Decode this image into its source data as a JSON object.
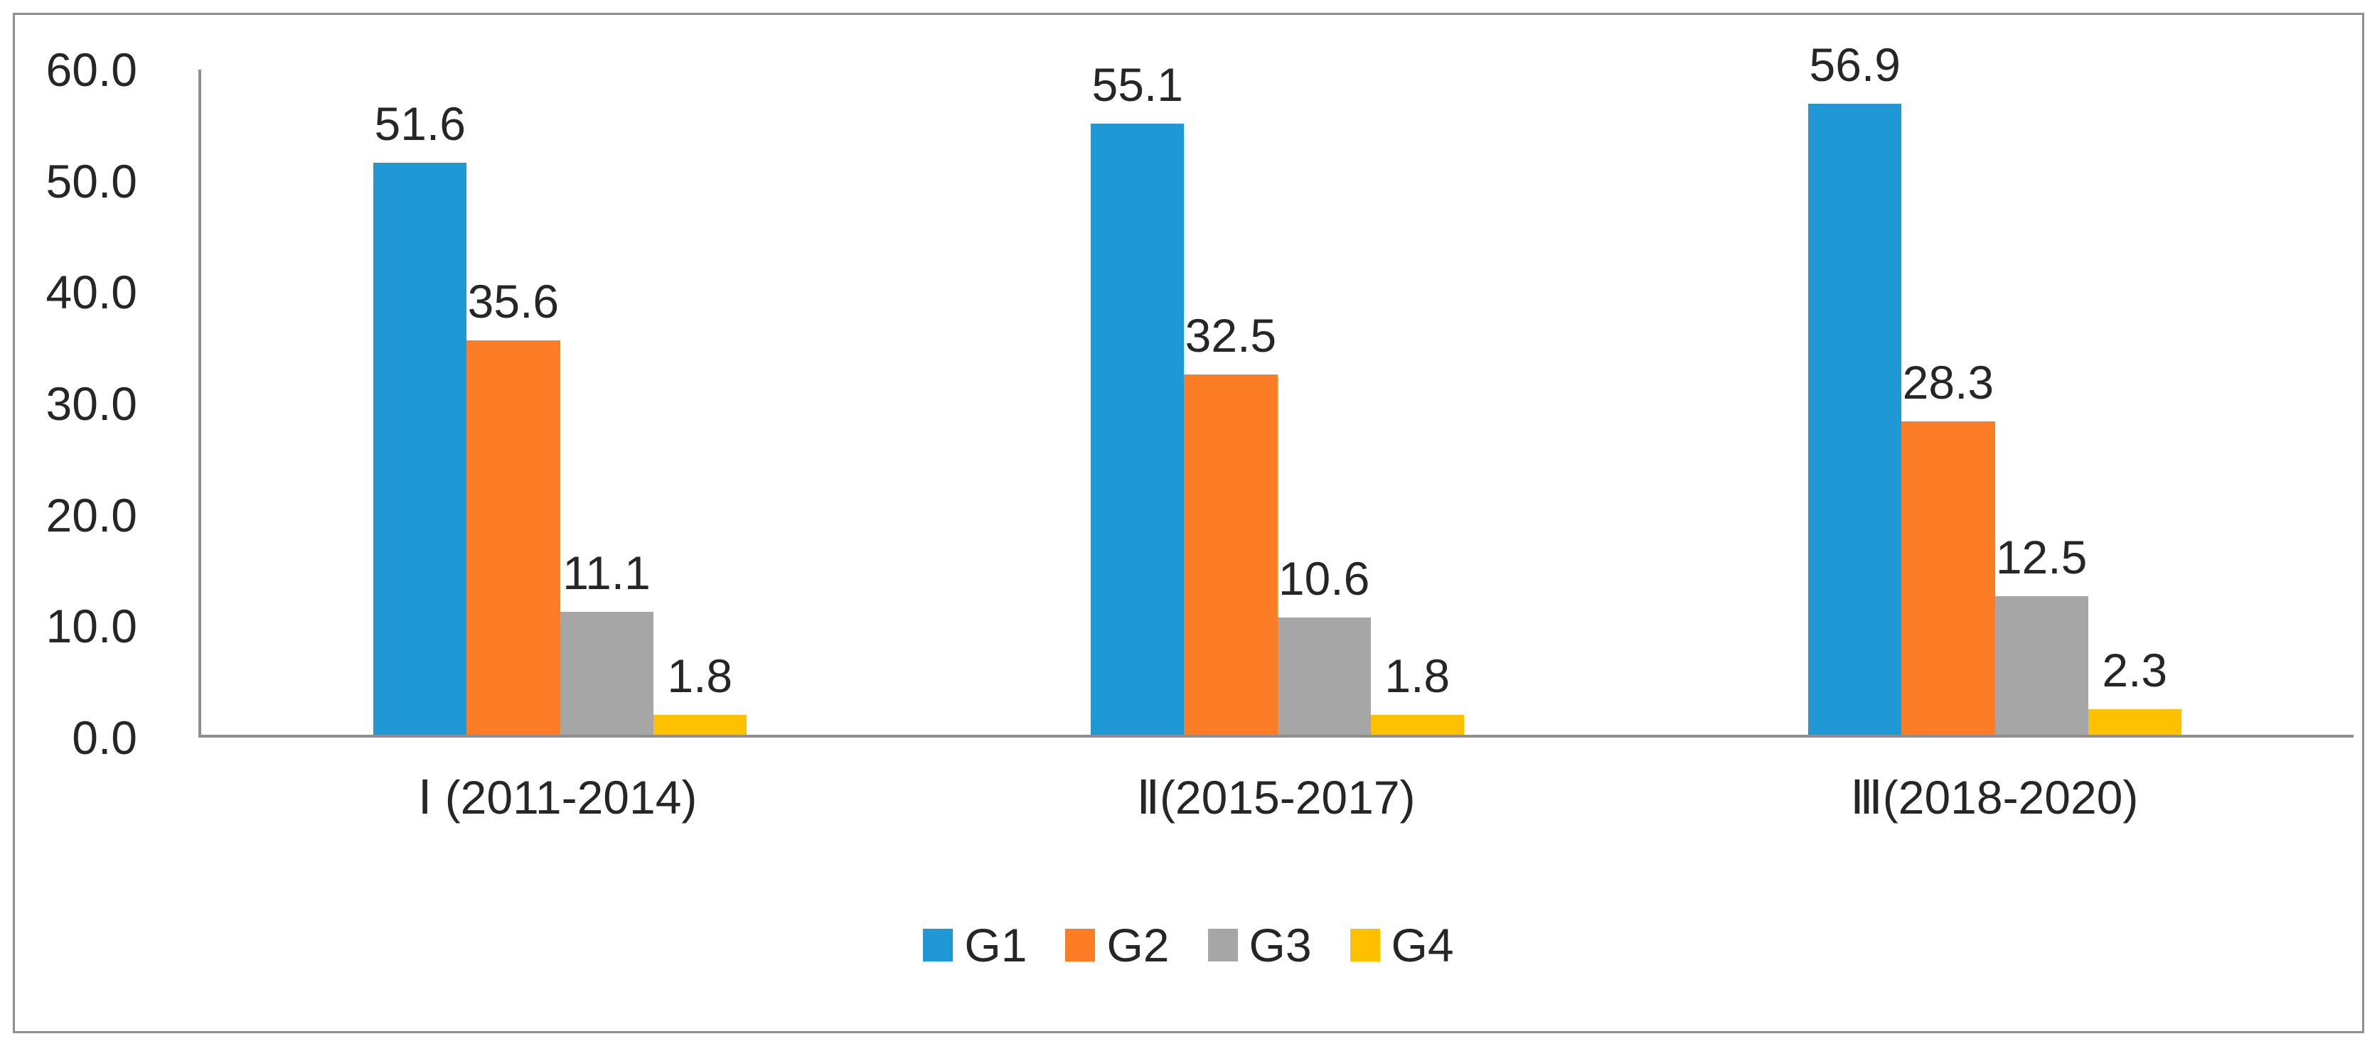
{
  "chart_data": {
    "type": "bar",
    "title": "",
    "xlabel": "",
    "ylabel": "",
    "categories": [
      "Ⅰ (2011-2014)",
      "Ⅱ(2015-2017)",
      "Ⅲ(2018-2020)"
    ],
    "series": [
      {
        "name": "G1",
        "color": "#2098D5",
        "values": [
          51.6,
          55.1,
          56.9
        ]
      },
      {
        "name": "G2",
        "color": "#FC7D26",
        "values": [
          35.6,
          32.5,
          28.3
        ]
      },
      {
        "name": "G3",
        "color": "#A6A6A6",
        "values": [
          11.1,
          10.6,
          12.5
        ]
      },
      {
        "name": "G4",
        "color": "#FFC000",
        "values": [
          1.8,
          1.8,
          2.3
        ]
      }
    ],
    "data_labels": [
      [
        "51.6",
        "35.6",
        "11.1",
        "1.8"
      ],
      [
        "55.1",
        "32.5",
        "10.6",
        "1.8"
      ],
      [
        "56.9",
        "28.3",
        "12.5",
        "2.3"
      ]
    ],
    "y_ticks": [
      "60.0",
      "50.0",
      "40.0",
      "30.0",
      "20.0",
      "10.0",
      "0.0"
    ],
    "ylim": [
      0,
      60
    ],
    "grid": false,
    "legend_position": "bottom",
    "legend_labels": [
      "G1",
      "G2",
      "G3",
      "G4"
    ]
  },
  "colors": {
    "axis": "#8F8F8F",
    "border": "#8F8F8F",
    "text": "#262626",
    "background": "#FFFFFF"
  }
}
